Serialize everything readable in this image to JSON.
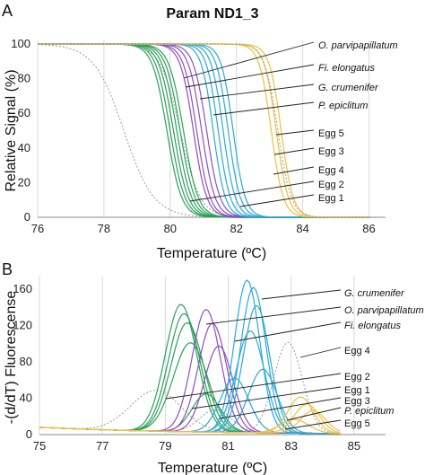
{
  "title": "Param ND1_3",
  "colors": {
    "green": "#2ca05a",
    "purple": "#8e4fc1",
    "blue": "#2aa9d8",
    "yellow": "#f0c040",
    "gray_dotted": "#9a9a9a"
  },
  "chart_data": [
    {
      "panel": "A",
      "type": "line",
      "xlabel": "Temperature (ºC)",
      "ylabel": "Relative Signal (%)",
      "xlim": [
        76,
        86.5
      ],
      "ylim": [
        0,
        100
      ],
      "xticks": [
        "76",
        "78",
        "80",
        "82",
        "84",
        "86"
      ],
      "yticks": [
        "0",
        "20",
        "40",
        "60",
        "80",
        "100"
      ],
      "grid": "vertical",
      "annotations": [
        "O. parvipapillatum",
        "Fi. elongatus",
        "G. crumenifer",
        "P. epiclitum",
        "Egg 5",
        "Egg 3",
        "Egg 4",
        "Egg 2",
        "Egg 1"
      ],
      "italic_annotations": [
        "O. parvipapillatum",
        "Fi. elongatus",
        "G. crumenifer",
        "P. epiclitum"
      ],
      "series": [
        {
          "color": "gray_dotted",
          "dashed": true,
          "tm": 78.6,
          "slope": 0.45
        },
        {
          "color": "gray_dotted",
          "dashed": true,
          "tm": 80.3,
          "slope": 0.3
        },
        {
          "color": "green",
          "tm": 79.9,
          "slope": 0.22
        },
        {
          "color": "green",
          "tm": 80.0,
          "slope": 0.22
        },
        {
          "color": "green",
          "tm": 80.1,
          "slope": 0.22
        },
        {
          "color": "green",
          "tm": 80.2,
          "slope": 0.22
        },
        {
          "color": "green",
          "tm": 80.3,
          "slope": 0.22
        },
        {
          "color": "green",
          "tm": 80.4,
          "slope": 0.22
        },
        {
          "color": "purple",
          "tm": 80.7,
          "slope": 0.2
        },
        {
          "color": "purple",
          "tm": 80.8,
          "slope": 0.2
        },
        {
          "color": "purple",
          "tm": 80.95,
          "slope": 0.2
        },
        {
          "color": "purple",
          "tm": 81.1,
          "slope": 0.2
        },
        {
          "color": "blue",
          "tm": 81.3,
          "slope": 0.18
        },
        {
          "color": "blue",
          "tm": 81.45,
          "slope": 0.18
        },
        {
          "color": "blue",
          "tm": 81.6,
          "slope": 0.18
        },
        {
          "color": "blue",
          "tm": 81.75,
          "slope": 0.18
        },
        {
          "color": "blue",
          "tm": 81.9,
          "slope": 0.18
        },
        {
          "color": "yellow",
          "tm": 83.05,
          "slope": 0.18
        },
        {
          "color": "yellow",
          "tm": 83.2,
          "slope": 0.18
        },
        {
          "color": "yellow",
          "tm": 83.35,
          "slope": 0.18
        },
        {
          "color": "gray_dotted",
          "dashed": true,
          "tm": 83.25,
          "slope": 0.2
        }
      ]
    },
    {
      "panel": "B",
      "type": "line",
      "xlabel": "Temperature (ºC)",
      "ylabel": "-(d/dT) Fluorescense",
      "xlim": [
        75,
        86
      ],
      "ylim": [
        0,
        170
      ],
      "xticks": [
        "75",
        "77",
        "79",
        "81",
        "83",
        "85"
      ],
      "yticks": [
        "0",
        "40",
        "80",
        "120",
        "160"
      ],
      "grid": "vertical",
      "annotations": [
        "G. crumenifer",
        "O. parvipapillatum",
        "Fi. elongatus",
        "Egg 4",
        "Egg 2",
        "Egg 1",
        "Egg 3",
        "P. epiclitum",
        "Egg 5"
      ],
      "italic_annotations": [
        "G. crumenifer",
        "O. parvipapillatum",
        "Fi. elongatus",
        "P. epiclitum"
      ],
      "series": [
        {
          "color": "gray_dotted",
          "dashed": true,
          "mu": 78.7,
          "sigma": 0.8,
          "peak": 45
        },
        {
          "color": "gray_dotted",
          "dashed": true,
          "mu": 82.9,
          "sigma": 0.45,
          "peak": 100
        },
        {
          "color": "gray_dotted",
          "dashed": true,
          "mu": 80.6,
          "sigma": 0.5,
          "peak": 25
        },
        {
          "color": "green",
          "mu": 79.5,
          "sigma": 0.5,
          "peak": 140
        },
        {
          "color": "green",
          "mu": 79.6,
          "sigma": 0.5,
          "peak": 130
        },
        {
          "color": "green",
          "mu": 79.7,
          "sigma": 0.52,
          "peak": 120
        },
        {
          "color": "green",
          "mu": 79.8,
          "sigma": 0.55,
          "peak": 98
        },
        {
          "color": "green",
          "mu": 80.3,
          "sigma": 0.45,
          "peak": 42
        },
        {
          "color": "purple",
          "mu": 80.3,
          "sigma": 0.45,
          "peak": 135
        },
        {
          "color": "purple",
          "mu": 80.5,
          "sigma": 0.45,
          "peak": 120
        },
        {
          "color": "purple",
          "mu": 80.7,
          "sigma": 0.45,
          "peak": 95
        },
        {
          "color": "blue",
          "mu": 81.6,
          "sigma": 0.4,
          "peak": 168
        },
        {
          "color": "blue",
          "mu": 81.8,
          "sigma": 0.4,
          "peak": 160
        },
        {
          "color": "blue",
          "mu": 81.9,
          "sigma": 0.42,
          "peak": 140
        },
        {
          "color": "blue",
          "mu": 81.7,
          "sigma": 0.45,
          "peak": 112
        },
        {
          "color": "blue",
          "mu": 82.1,
          "sigma": 0.45,
          "peak": 70
        },
        {
          "color": "blue",
          "mu": 81.2,
          "sigma": 0.45,
          "peak": 60
        },
        {
          "color": "yellow",
          "mu": 83.3,
          "sigma": 0.4,
          "peak": 40
        },
        {
          "color": "yellow",
          "mu": 83.5,
          "sigma": 0.4,
          "peak": 32
        },
        {
          "color": "yellow",
          "mu": 83.7,
          "sigma": 0.4,
          "peak": 25
        },
        {
          "color": "yellow",
          "mu": 83.1,
          "sigma": 0.45,
          "peak": 15
        }
      ]
    }
  ]
}
